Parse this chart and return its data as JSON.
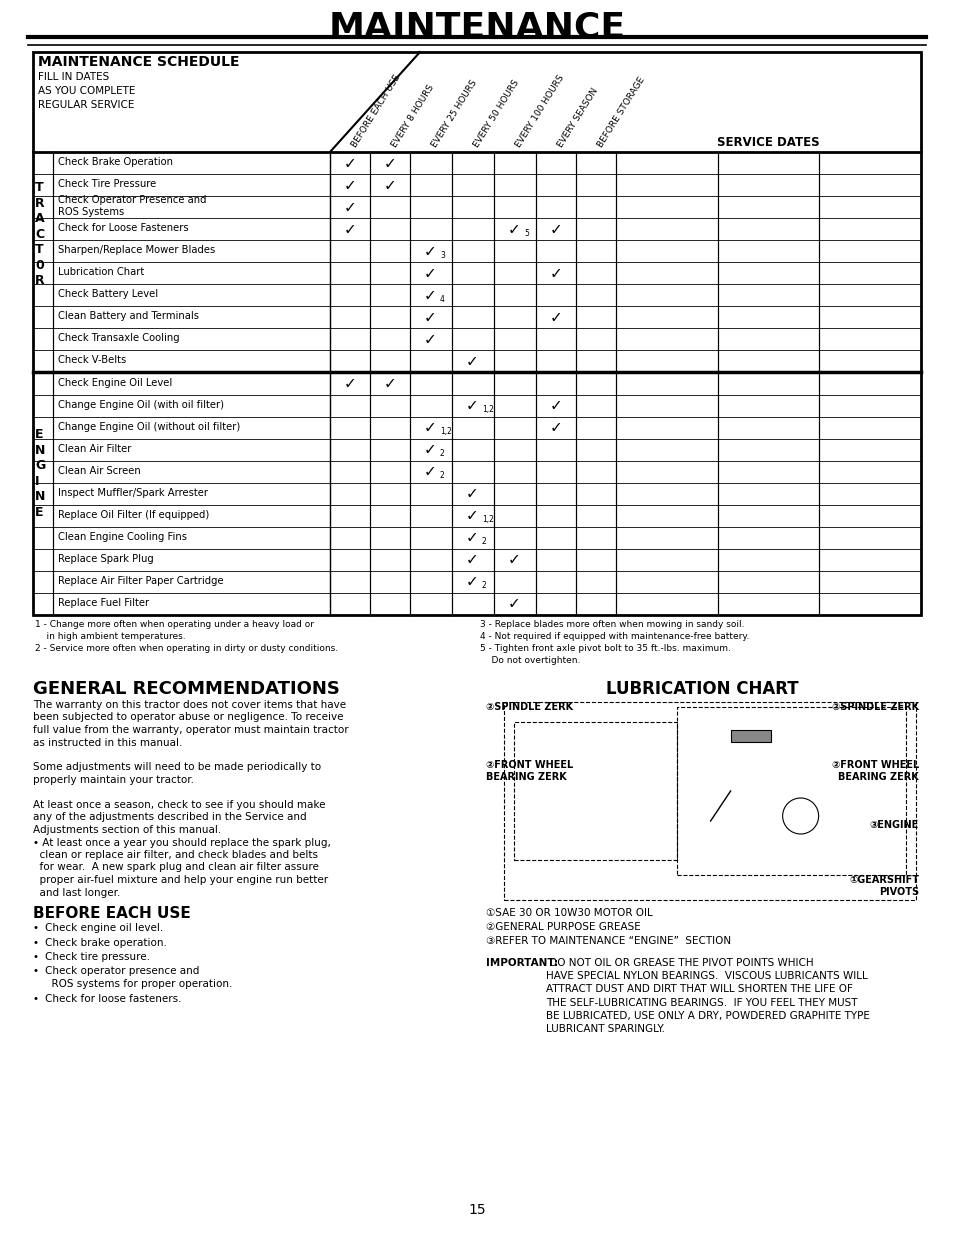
{
  "title": "MAINTENANCE",
  "bg_color": "#ffffff",
  "table_header": "MAINTENANCE SCHEDULE",
  "table_subtext": "FILL IN DATES\nAS YOU COMPLETE\nREGULAR SERVICE",
  "col_headers": [
    "BEFORE EACH USE",
    "EVERY 8 HOURS",
    "EVERY 25 HOURS",
    "EVERY 50 HOURS",
    "EVERY 100 HOURS",
    "EVERY SEASON",
    "BEFORE STORAGE"
  ],
  "service_dates_label": "SERVICE DATES",
  "tractor_rows": [
    {
      "text": "Check Brake Operation",
      "col0": 1,
      "col1": 1,
      "col2": 0,
      "col3": 0,
      "col4": 0,
      "col5": 0,
      "col6": 0,
      "note0": "",
      "note1": "",
      "note2": "",
      "note3": "",
      "note4": "",
      "note5": "",
      "note6": ""
    },
    {
      "text": "Check Tire Pressure",
      "col0": 1,
      "col1": 1,
      "col2": 0,
      "col3": 0,
      "col4": 0,
      "col5": 0,
      "col6": 0,
      "note0": "",
      "note1": "",
      "note2": "",
      "note3": "",
      "note4": "",
      "note5": "",
      "note6": ""
    },
    {
      "text": "Check Operator Presence and\nROS Systems",
      "col0": 1,
      "col1": 0,
      "col2": 0,
      "col3": 0,
      "col4": 0,
      "col5": 0,
      "col6": 0,
      "note0": "",
      "note1": "",
      "note2": "",
      "note3": "",
      "note4": "",
      "note5": "",
      "note6": ""
    },
    {
      "text": "Check for Loose Fasteners",
      "col0": 1,
      "col1": 0,
      "col2": 0,
      "col3": 0,
      "col4": 1,
      "col5": 1,
      "col6": 0,
      "note0": "",
      "note1": "",
      "note2": "",
      "note3": "",
      "note4": "5",
      "note5": "",
      "note6": ""
    },
    {
      "text": "Sharpen/Replace Mower Blades",
      "col0": 0,
      "col1": 0,
      "col2": 1,
      "col3": 0,
      "col4": 0,
      "col5": 0,
      "col6": 0,
      "note0": "",
      "note1": "",
      "note2": "3",
      "note3": "",
      "note4": "",
      "note5": "",
      "note6": ""
    },
    {
      "text": "Lubrication Chart",
      "col0": 0,
      "col1": 0,
      "col2": 1,
      "col3": 0,
      "col4": 0,
      "col5": 1,
      "col6": 0,
      "note0": "",
      "note1": "",
      "note2": "",
      "note3": "",
      "note4": "",
      "note5": "",
      "note6": ""
    },
    {
      "text": "Check Battery Level",
      "col0": 0,
      "col1": 0,
      "col2": 1,
      "col3": 0,
      "col4": 0,
      "col5": 0,
      "col6": 0,
      "note0": "",
      "note1": "",
      "note2": "4",
      "note3": "",
      "note4": "",
      "note5": "",
      "note6": ""
    },
    {
      "text": "Clean Battery and Terminals",
      "col0": 0,
      "col1": 0,
      "col2": 1,
      "col3": 0,
      "col4": 0,
      "col5": 1,
      "col6": 0,
      "note0": "",
      "note1": "",
      "note2": "",
      "note3": "",
      "note4": "",
      "note5": "",
      "note6": ""
    },
    {
      "text": "Check Transaxle Cooling",
      "col0": 0,
      "col1": 0,
      "col2": 1,
      "col3": 0,
      "col4": 0,
      "col5": 0,
      "col6": 0,
      "note0": "",
      "note1": "",
      "note2": "",
      "note3": "",
      "note4": "",
      "note5": "",
      "note6": ""
    },
    {
      "text": "Check V-Belts",
      "col0": 0,
      "col1": 0,
      "col2": 0,
      "col3": 1,
      "col4": 0,
      "col5": 0,
      "col6": 0,
      "note0": "",
      "note1": "",
      "note2": "",
      "note3": "",
      "note4": "",
      "note5": "",
      "note6": ""
    }
  ],
  "engine_rows": [
    {
      "text": "Check Engine Oil Level",
      "col0": 1,
      "col1": 1,
      "col2": 0,
      "col3": 0,
      "col4": 0,
      "col5": 0,
      "col6": 0,
      "note0": "",
      "note1": "",
      "note2": "",
      "note3": "",
      "note4": "",
      "note5": "",
      "note6": ""
    },
    {
      "text": "Change Engine Oil (with oil filter)",
      "col0": 0,
      "col1": 0,
      "col2": 0,
      "col3": 1,
      "col4": 0,
      "col5": 1,
      "col6": 0,
      "note0": "",
      "note1": "",
      "note2": "",
      "note3": "1,2",
      "note4": "",
      "note5": "",
      "note6": ""
    },
    {
      "text": "Change Engine Oil (without oil filter)",
      "col0": 0,
      "col1": 0,
      "col2": 1,
      "col3": 0,
      "col4": 0,
      "col5": 1,
      "col6": 0,
      "note0": "",
      "note1": "",
      "note2": "1,2",
      "note3": "",
      "note4": "",
      "note5": "",
      "note6": ""
    },
    {
      "text": "Clean Air Filter",
      "col0": 0,
      "col1": 0,
      "col2": 1,
      "col3": 0,
      "col4": 0,
      "col5": 0,
      "col6": 0,
      "note0": "",
      "note1": "",
      "note2": "2",
      "note3": "",
      "note4": "",
      "note5": "",
      "note6": ""
    },
    {
      "text": "Clean Air Screen",
      "col0": 0,
      "col1": 0,
      "col2": 1,
      "col3": 0,
      "col4": 0,
      "col5": 0,
      "col6": 0,
      "note0": "",
      "note1": "",
      "note2": "2",
      "note3": "",
      "note4": "",
      "note5": "",
      "note6": ""
    },
    {
      "text": "Inspect Muffler/Spark Arrester",
      "col0": 0,
      "col1": 0,
      "col2": 0,
      "col3": 1,
      "col4": 0,
      "col5": 0,
      "col6": 0,
      "note0": "",
      "note1": "",
      "note2": "",
      "note3": "",
      "note4": "",
      "note5": "",
      "note6": ""
    },
    {
      "text": "Replace Oil Filter (If equipped)",
      "col0": 0,
      "col1": 0,
      "col2": 0,
      "col3": 1,
      "col4": 0,
      "col5": 0,
      "col6": 0,
      "note0": "",
      "note1": "",
      "note2": "",
      "note3": "1,2",
      "note4": "",
      "note5": "",
      "note6": ""
    },
    {
      "text": "Clean Engine Cooling Fins",
      "col0": 0,
      "col1": 0,
      "col2": 0,
      "col3": 1,
      "col4": 0,
      "col5": 0,
      "col6": 0,
      "note0": "",
      "note1": "",
      "note2": "",
      "note3": "2",
      "note4": "",
      "note5": "",
      "note6": ""
    },
    {
      "text": "Replace Spark Plug",
      "col0": 0,
      "col1": 0,
      "col2": 0,
      "col3": 1,
      "col4": 1,
      "col5": 0,
      "col6": 0,
      "note0": "",
      "note1": "",
      "note2": "",
      "note3": "",
      "note4": "",
      "note5": "",
      "note6": ""
    },
    {
      "text": "Replace Air Filter Paper Cartridge",
      "col0": 0,
      "col1": 0,
      "col2": 0,
      "col3": 1,
      "col4": 0,
      "col5": 0,
      "col6": 0,
      "note0": "",
      "note1": "",
      "note2": "",
      "note3": "2",
      "note4": "",
      "note5": "",
      "note6": ""
    },
    {
      "text": "Replace Fuel Filter",
      "col0": 0,
      "col1": 0,
      "col2": 0,
      "col3": 0,
      "col4": 1,
      "col5": 0,
      "col6": 0,
      "note0": "",
      "note1": "",
      "note2": "",
      "note3": "",
      "note4": "",
      "note5": "",
      "note6": ""
    }
  ],
  "footnotes_left": [
    "1 - Change more often when operating under a heavy load or",
    "    in high ambient temperatures.",
    "2 - Service more often when operating in dirty or dusty conditions."
  ],
  "footnotes_right": [
    "3 - Replace blades more often when mowing in sandy soil.",
    "4 - Not required if equipped with maintenance-free battery.",
    "5 - Tighten front axle pivot bolt to 35 ft.-lbs. maximum.",
    "    Do not overtighten."
  ],
  "gen_rec_title": "GENERAL RECOMMENDATIONS",
  "before_each_use_title": "BEFORE EACH USE",
  "before_each_use_items": [
    "Check engine oil level.",
    "Check brake operation.",
    "Check tire pressure.",
    "Check operator presence and\n  ROS systems for proper operation.",
    "Check for loose fasteners."
  ],
  "lub_chart_title": "LUBRICATION CHART",
  "lub_legend": [
    "①SAE 30 OR 10W30 MOTOR OIL",
    "②GENERAL PURPOSE GREASE",
    "③REFER TO MAINTENANCE “ENGINE”  SECTION"
  ],
  "page_number": "15"
}
